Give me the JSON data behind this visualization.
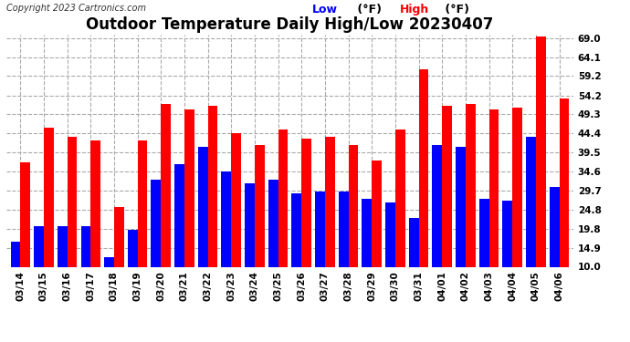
{
  "title": "Outdoor Temperature Daily High/Low 20230407",
  "copyright": "Copyright 2023 Cartronics.com",
  "legend_low": "Low",
  "legend_high": "High",
  "legend_unit": "(°F)",
  "dates": [
    "03/14",
    "03/15",
    "03/16",
    "03/17",
    "03/18",
    "03/19",
    "03/20",
    "03/21",
    "03/22",
    "03/23",
    "03/24",
    "03/25",
    "03/26",
    "03/27",
    "03/28",
    "03/29",
    "03/30",
    "03/31",
    "04/01",
    "04/02",
    "04/03",
    "04/04",
    "04/05",
    "04/06"
  ],
  "highs": [
    37.0,
    46.0,
    43.5,
    42.5,
    25.5,
    42.5,
    52.0,
    50.5,
    51.5,
    44.5,
    41.5,
    45.5,
    43.0,
    43.5,
    41.5,
    37.5,
    45.5,
    61.0,
    51.5,
    52.0,
    50.5,
    51.0,
    69.5,
    53.5
  ],
  "lows": [
    16.5,
    20.5,
    20.5,
    20.5,
    12.5,
    19.5,
    32.5,
    36.5,
    41.0,
    34.5,
    31.5,
    32.5,
    29.0,
    29.5,
    29.5,
    27.5,
    26.5,
    22.5,
    41.5,
    41.0,
    27.5,
    27.0,
    43.5,
    30.5
  ],
  "high_color": "#ff0000",
  "low_color": "#0000ff",
  "bg_color": "#ffffff",
  "grid_color": "#aaaaaa",
  "ylim_min": 10.0,
  "ylim_max": 69.0,
  "yticks": [
    10.0,
    14.9,
    19.8,
    24.8,
    29.7,
    34.6,
    39.5,
    44.4,
    49.3,
    54.2,
    59.2,
    64.1,
    69.0
  ],
  "bar_width": 0.42,
  "title_fontsize": 12,
  "tick_fontsize": 7.5,
  "label_fontsize": 9,
  "copyright_fontsize": 7
}
